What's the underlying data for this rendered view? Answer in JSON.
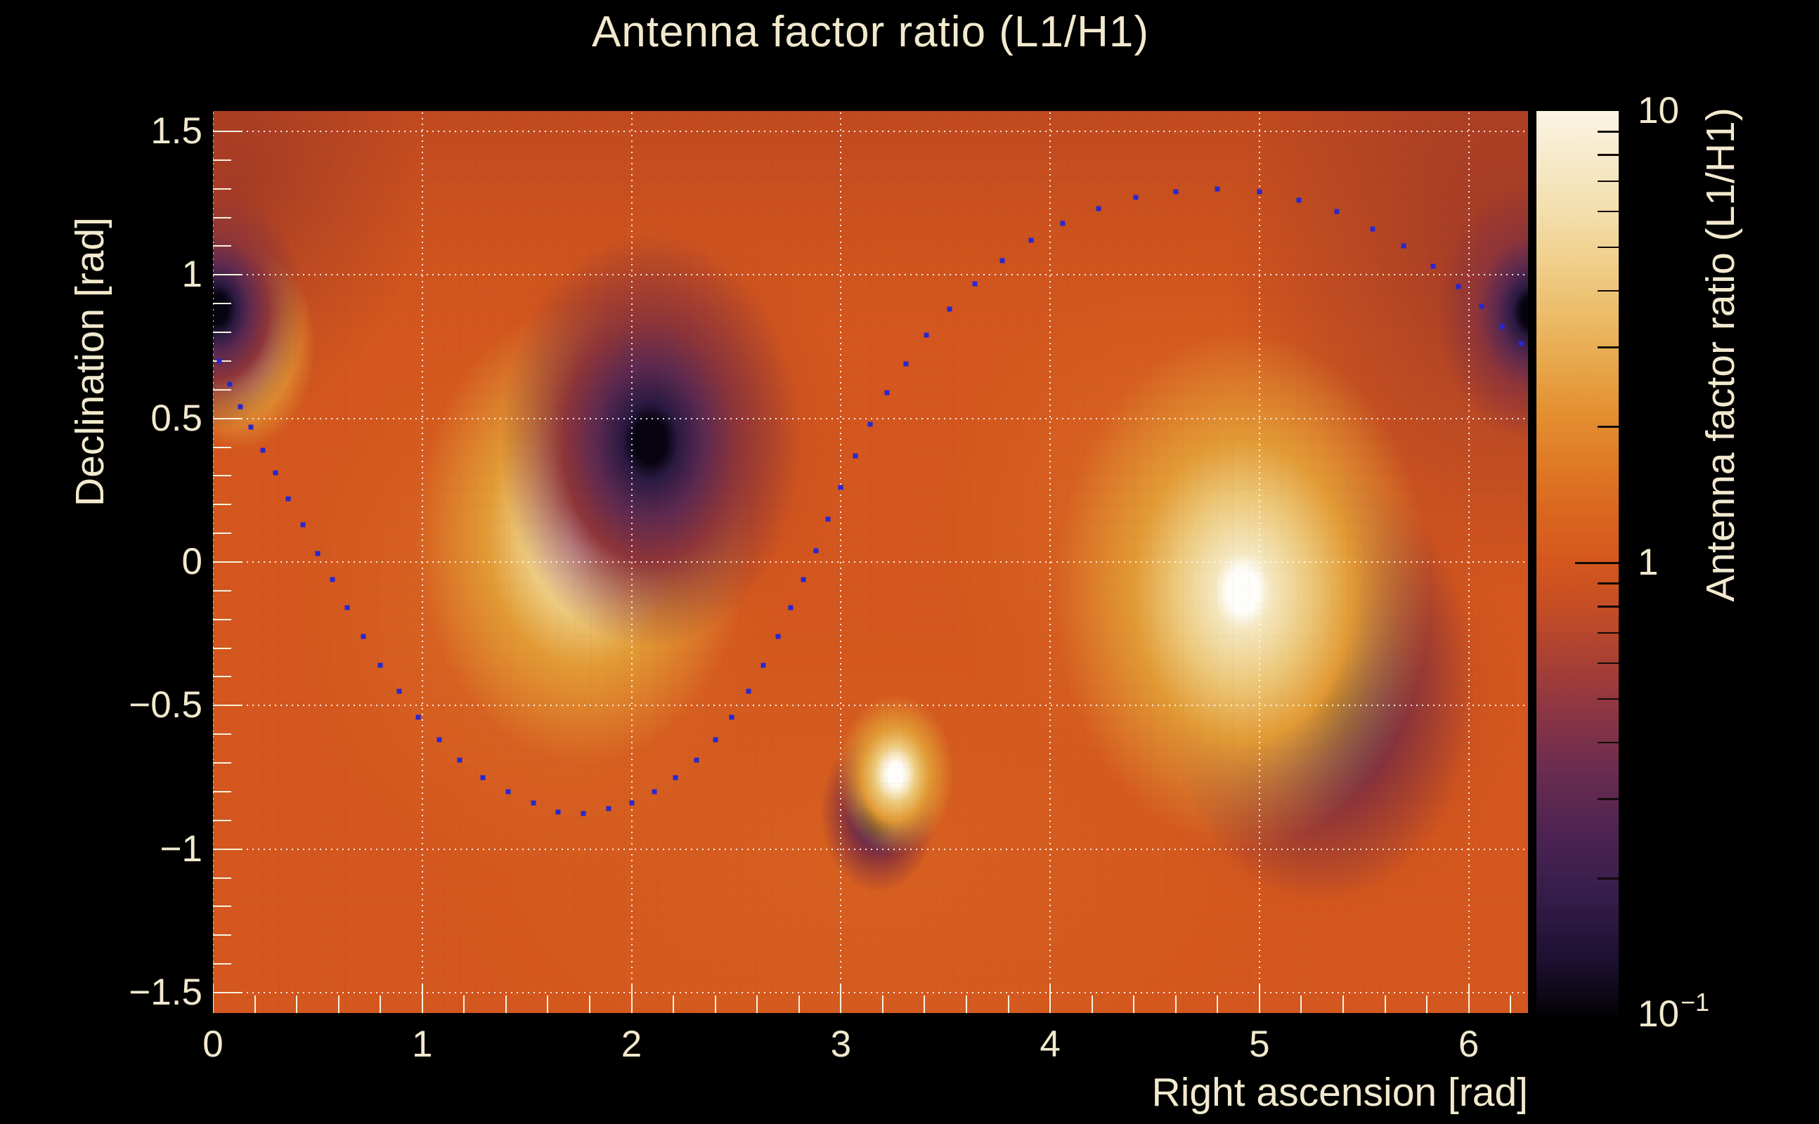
{
  "colors": {
    "background": "#000000",
    "text_cream": "#f2e9ce",
    "plot_base_orange": "#d3571e",
    "track_dot_blue": "#2727cf",
    "grid_white": "rgba(255,255,255,0.88)",
    "tick_cream": "#f7f1de"
  },
  "chart_data": {
    "type": "heatmap",
    "title": "Antenna factor ratio (L1/H1)",
    "xlabel": "Right ascension [rad]",
    "ylabel": "Declination [rad]",
    "zlabel": "Antenna factor ratio (L1/H1)",
    "x_range": [
      0,
      6.2832
    ],
    "y_range": [
      -1.5708,
      1.5708
    ],
    "z_range": [
      0.1,
      10
    ],
    "z_scale": "log",
    "grid": "dotted-major-both-axes",
    "background_value": 1.1,
    "x_ticks": {
      "major": [
        0,
        1,
        2,
        3,
        4,
        5,
        6
      ],
      "labels": [
        "0",
        "1",
        "2",
        "3",
        "4",
        "5",
        "6"
      ],
      "minor_step": 0.2
    },
    "y_ticks": {
      "major": [
        1.5,
        1,
        0.5,
        0,
        -0.5,
        -1,
        -1.5
      ],
      "labels": [
        "1.5",
        "1",
        "0.5",
        "0",
        "−0.5",
        "−1",
        "−1.5"
      ],
      "minor_step": 0.1
    },
    "z_ticks": {
      "major": [
        {
          "v": 10,
          "base": "10",
          "sup": ""
        },
        {
          "v": 1,
          "base": "1",
          "sup": ""
        },
        {
          "v": 0.1,
          "base": "10",
          "sup": "−1"
        }
      ],
      "minor": [
        9,
        8,
        7,
        6,
        5,
        4,
        3,
        2,
        0.9,
        0.8,
        0.7,
        0.6,
        0.5,
        0.4,
        0.3,
        0.2
      ]
    },
    "colormap_stops": [
      {
        "value": 0.1,
        "color": "#050308"
      },
      {
        "value": 0.13,
        "color": "#1b0f2f"
      },
      {
        "value": 0.18,
        "color": "#341c49"
      },
      {
        "value": 0.25,
        "color": "#4d2353"
      },
      {
        "value": 0.35,
        "color": "#6b2c4f"
      },
      {
        "value": 0.5,
        "color": "#933840"
      },
      {
        "value": 0.65,
        "color": "#b04330"
      },
      {
        "value": 0.8,
        "color": "#c54d24"
      },
      {
        "value": 1.0,
        "color": "#d4571e"
      },
      {
        "value": 1.3,
        "color": "#da671f"
      },
      {
        "value": 1.7,
        "color": "#e07c26"
      },
      {
        "value": 2.2,
        "color": "#e49233"
      },
      {
        "value": 2.8,
        "color": "#e8a84c"
      },
      {
        "value": 3.6,
        "color": "#ecbd6b"
      },
      {
        "value": 4.7,
        "color": "#f0d08d"
      },
      {
        "value": 6.0,
        "color": "#f3deac"
      },
      {
        "value": 7.7,
        "color": "#f7e9c8"
      },
      {
        "value": 10,
        "color": "#fbf4e4"
      }
    ],
    "spot_colors": {
      "min": [
        "#070310",
        "#2b1a42",
        "#5c2950",
        "#8e3539",
        "rgba(140,52,50,0)"
      ],
      "max": [
        "#fefdfa",
        "#f5e7c0",
        "#ecc87a",
        "#e29a35",
        "rgba(224,150,50,0)"
      ]
    },
    "features": [
      {
        "kind": "min",
        "ra": 0.02,
        "dec": 0.88,
        "core_r": 0.05,
        "glow_r": 0.42,
        "note": "ratio < 0.1"
      },
      {
        "kind": "max",
        "ra": 0.13,
        "dec": 0.75,
        "core_r": 0.042,
        "glow_r": 0.36,
        "note": "ratio > 10"
      },
      {
        "kind": "min",
        "ra": 2.09,
        "dec": 0.42,
        "core_r": 0.075,
        "glow_r": 0.72,
        "note": "ratio < 0.1"
      },
      {
        "kind": "max",
        "ra": 1.77,
        "dec": 0.1,
        "core_r": 0.07,
        "glow_r": 0.8,
        "note": "ratio > 10"
      },
      {
        "kind": "max",
        "ra": 3.26,
        "dec": -0.74,
        "core_r": 0.038,
        "glow_r": 0.28,
        "note": "ratio > 10"
      },
      {
        "kind": "min",
        "ra": 3.18,
        "dec": -0.87,
        "core_r": 0.04,
        "glow_r": 0.28,
        "note": "ratio < 0.1"
      },
      {
        "kind": "max",
        "ra": 4.92,
        "dec": -0.1,
        "core_r": 0.075,
        "glow_r": 0.9,
        "note": "ratio > 10"
      },
      {
        "kind": "min",
        "ra": 5.29,
        "dec": -0.43,
        "core_r": 0.075,
        "glow_r": 0.75,
        "note": "ratio < 0.1"
      },
      {
        "kind": "min",
        "ra": 6.3,
        "dec": 0.87,
        "core_r": 0.05,
        "glow_r": 0.45,
        "note": "ratio < 0.1 (wrap of left-edge spot)"
      }
    ],
    "region_tints": [
      {
        "ra": 0.1,
        "dec": 1.3,
        "rx_r": 0.9,
        "ry_r": 0.8,
        "rgb": "128,38,44",
        "a": 0.5
      },
      {
        "ra": 6.15,
        "dec": 1.05,
        "rx_r": 1.3,
        "ry_r": 1.15,
        "rgb": "122,36,48",
        "a": 0.55
      },
      {
        "ra": 2.15,
        "dec": 0.45,
        "rx_r": 0.9,
        "ry_r": 0.75,
        "rgb": "150,48,40",
        "a": 0.4
      },
      {
        "ra": 5.3,
        "dec": -0.45,
        "rx_r": 0.95,
        "ry_r": 0.8,
        "rgb": "150,48,40",
        "a": 0.4
      },
      {
        "ra": 1.55,
        "dec": -0.15,
        "rx_r": 1.15,
        "ry_r": 0.95,
        "rgb": "232,148,48",
        "a": 0.35
      },
      {
        "ra": 4.6,
        "dec": 0.1,
        "rx_r": 1.15,
        "ry_r": 0.9,
        "rgb": "232,148,48",
        "a": 0.32
      },
      {
        "ra": 3.1,
        "dec": -1.05,
        "rx_r": 2.1,
        "ry_r": 0.85,
        "rgb": "226,122,38",
        "a": 0.25
      }
    ],
    "top_band": {
      "rgb": "148,44,34",
      "a0": 0.3,
      "a1": 0.1,
      "h0": 170,
      "h1": 320
    },
    "track": {
      "marker": "small-blue-square-dots",
      "points": [
        [
          0.03,
          0.7
        ],
        [
          0.08,
          0.62
        ],
        [
          0.13,
          0.54
        ],
        [
          0.18,
          0.47
        ],
        [
          0.24,
          0.39
        ],
        [
          0.3,
          0.31
        ],
        [
          0.36,
          0.22
        ],
        [
          0.43,
          0.13
        ],
        [
          0.5,
          0.03
        ],
        [
          0.57,
          -0.06
        ],
        [
          0.64,
          -0.16
        ],
        [
          0.72,
          -0.26
        ],
        [
          0.8,
          -0.36
        ],
        [
          0.89,
          -0.45
        ],
        [
          0.98,
          -0.54
        ],
        [
          1.08,
          -0.62
        ],
        [
          1.18,
          -0.69
        ],
        [
          1.29,
          -0.75
        ],
        [
          1.41,
          -0.8
        ],
        [
          1.53,
          -0.84
        ],
        [
          1.65,
          -0.87
        ],
        [
          1.77,
          -0.875
        ],
        [
          1.89,
          -0.86
        ],
        [
          2.0,
          -0.84
        ],
        [
          2.11,
          -0.8
        ],
        [
          2.21,
          -0.75
        ],
        [
          2.31,
          -0.69
        ],
        [
          2.4,
          -0.62
        ],
        [
          2.48,
          -0.54
        ],
        [
          2.56,
          -0.45
        ],
        [
          2.63,
          -0.36
        ],
        [
          2.7,
          -0.26
        ],
        [
          2.76,
          -0.16
        ],
        [
          2.82,
          -0.06
        ],
        [
          2.88,
          0.04
        ],
        [
          2.94,
          0.15
        ],
        [
          3.0,
          0.26
        ],
        [
          3.07,
          0.37
        ],
        [
          3.14,
          0.48
        ],
        [
          3.22,
          0.59
        ],
        [
          3.31,
          0.69
        ],
        [
          3.41,
          0.79
        ],
        [
          3.52,
          0.88
        ],
        [
          3.64,
          0.97
        ],
        [
          3.77,
          1.05
        ],
        [
          3.91,
          1.12
        ],
        [
          4.06,
          1.18
        ],
        [
          4.23,
          1.23
        ],
        [
          4.41,
          1.27
        ],
        [
          4.6,
          1.29
        ],
        [
          4.8,
          1.3
        ],
        [
          5.0,
          1.29
        ],
        [
          5.19,
          1.26
        ],
        [
          5.37,
          1.22
        ],
        [
          5.54,
          1.16
        ],
        [
          5.69,
          1.1
        ],
        [
          5.83,
          1.03
        ],
        [
          5.95,
          0.96
        ],
        [
          6.06,
          0.89
        ],
        [
          6.16,
          0.82
        ],
        [
          6.25,
          0.76
        ]
      ]
    }
  }
}
